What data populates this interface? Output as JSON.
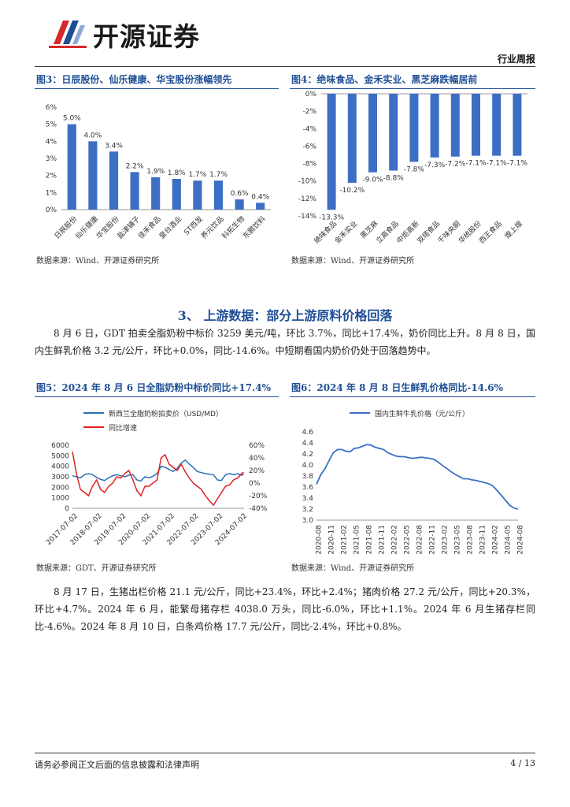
{
  "header": {
    "logo_text": "开源证券",
    "section": "行业周报"
  },
  "colors": {
    "accent": "#1f4e96",
    "bar": "#3c6fc4",
    "line_red": "#e02020",
    "line_blue": "#2a6fb8",
    "logo_red": "#d6282d"
  },
  "fig3": {
    "title": "图3：日辰股份、仙乐健康、华宝股份涨幅领先",
    "source": "数据来源：Wind、开源证券研究所",
    "chart_data": {
      "type": "bar",
      "categories": [
        "日辰股份",
        "仙乐健康",
        "华宝股份",
        "盐津铺子",
        "佳禾食品",
        "皇台酒业",
        "ST西发",
        "养元饮品",
        "科拓生物",
        "东鹏饮料"
      ],
      "values": [
        5.0,
        4.0,
        3.4,
        2.2,
        1.9,
        1.8,
        1.7,
        1.7,
        0.6,
        0.4
      ],
      "value_labels": [
        "5.0%",
        "4.0%",
        "3.4%",
        "2.2%",
        "1.9%",
        "1.8%",
        "1.7%",
        "1.7%",
        "0.6%",
        "0.4%"
      ],
      "ylim": [
        0,
        6
      ],
      "ytick_labels": [
        "0%",
        "1%",
        "2%",
        "3%",
        "4%",
        "5%",
        "6%"
      ]
    }
  },
  "fig4": {
    "title": "图4：绝味食品、金禾实业、黑芝麻跌幅居前",
    "source": "数据来源：Wind、开源证券研究所",
    "chart_data": {
      "type": "bar",
      "categories": [
        "绝味食品",
        "金禾实业",
        "黑芝麻",
        "立高食品",
        "中炬高新",
        "双塔食品",
        "千味央厨",
        "华统股份",
        "西王食品",
        "煌上煌"
      ],
      "values": [
        -13.3,
        -10.2,
        -9.0,
        -8.8,
        -7.8,
        -7.3,
        -7.2,
        -7.1,
        -7.1,
        -7.1
      ],
      "value_labels": [
        "-13.3%",
        "-10.2%",
        "-9.0%",
        "-8.8%",
        "-7.8%",
        "-7.3%",
        "-7.2%",
        "-7.1%",
        "-7.1%",
        "-7.1%"
      ],
      "ylim": [
        -14,
        0
      ],
      "ytick_labels": [
        "0%",
        "-2%",
        "-4%",
        "-6%",
        "-8%",
        "-10%",
        "-12%",
        "-14%"
      ]
    }
  },
  "section3": {
    "title": "3、 上游数据：部分上游原料价格回落"
  },
  "para1": "8 月 6 日，GDT 拍卖全脂奶粉中标价 3259 美元/吨，环比 3.7%，同比+17.4%，奶价同比上升。8 月 8 日，国内生鲜乳价格 3.2 元/公斤，环比+0.0%，同比-14.6%。中短期看国内奶价仍处于回落趋势中。",
  "fig5": {
    "title": "图5：2024 年 8 月 6 日全脂奶粉中标价同比+17.4%",
    "source": "数据来源：GDT、开源证券研究所",
    "chart_data": {
      "type": "line",
      "series": [
        {
          "name": "新西兰全脂奶粉拍卖价（USD/MD）",
          "axis": "left",
          "x": [
            "2017-07",
            "2017-09",
            "2017-11",
            "2018-01",
            "2018-03",
            "2018-05",
            "2018-07",
            "2018-09",
            "2018-11",
            "2019-01",
            "2019-03",
            "2019-05",
            "2019-07",
            "2019-09",
            "2019-11",
            "2020-01",
            "2020-03",
            "2020-05",
            "2020-07",
            "2020-09",
            "2020-11",
            "2021-01",
            "2021-03",
            "2021-05",
            "2021-07",
            "2021-09",
            "2021-11",
            "2022-01",
            "2022-03",
            "2022-05",
            "2022-07",
            "2022-09",
            "2022-11",
            "2023-01",
            "2023-03",
            "2023-05",
            "2023-07",
            "2023-09",
            "2023-11",
            "2024-01",
            "2024-03",
            "2024-05",
            "2024-07",
            "2024-08"
          ],
          "values": [
            3100,
            3000,
            2900,
            3200,
            3300,
            3200,
            2950,
            2750,
            2650,
            2900,
            3100,
            3200,
            3100,
            3000,
            3150,
            3200,
            2700,
            2600,
            3000,
            2900,
            3050,
            3300,
            4000,
            3900,
            3700,
            3500,
            3800,
            4300,
            4600,
            4200,
            3900,
            3500,
            3400,
            3300,
            3250,
            3200,
            2700,
            2650,
            3200,
            3300,
            3200,
            3300,
            3150,
            3259
          ]
        },
        {
          "name": "同比增速",
          "axis": "right",
          "x": [
            "2017-07",
            "2017-09",
            "2017-11",
            "2018-01",
            "2018-03",
            "2018-05",
            "2018-07",
            "2018-09",
            "2018-11",
            "2019-01",
            "2019-03",
            "2019-05",
            "2019-07",
            "2019-09",
            "2019-11",
            "2020-01",
            "2020-03",
            "2020-05",
            "2020-07",
            "2020-09",
            "2020-11",
            "2021-01",
            "2021-03",
            "2021-05",
            "2021-07",
            "2021-09",
            "2021-11",
            "2022-01",
            "2022-03",
            "2022-05",
            "2022-07",
            "2022-09",
            "2022-11",
            "2023-01",
            "2023-03",
            "2023-05",
            "2023-07",
            "2023-09",
            "2023-11",
            "2024-01",
            "2024-03",
            "2024-05",
            "2024-07",
            "2024-08"
          ],
          "values": [
            50,
            15,
            -10,
            -15,
            -20,
            -5,
            5,
            -10,
            -15,
            -5,
            0,
            10,
            8,
            15,
            20,
            5,
            -12,
            -20,
            -5,
            -5,
            0,
            5,
            40,
            45,
            30,
            25,
            20,
            30,
            18,
            8,
            0,
            -5,
            -10,
            -20,
            -28,
            -35,
            -25,
            -15,
            -5,
            -3,
            5,
            8,
            15,
            17.4
          ]
        }
      ],
      "ylim_left": [
        0,
        6000
      ],
      "ylim_right": [
        -40,
        60
      ],
      "ytick_left": [
        "0",
        "1000",
        "2000",
        "3000",
        "4000",
        "5000",
        "6000"
      ],
      "ytick_right": [
        "-40%",
        "-20%",
        "0%",
        "20%",
        "40%",
        "60%"
      ],
      "xtick_labels": [
        "2017-07-02",
        "2018-07-02",
        "2019-07-02",
        "2020-07-02",
        "2021-07-02",
        "2022-07-02",
        "2023-07-02",
        "2024-07-02"
      ]
    }
  },
  "fig6": {
    "title": "图6：2024 年 8 月 8 日生鲜乳价格同比-14.6%",
    "source": "数据来源：Wind、开源证券研究所",
    "chart_data": {
      "type": "line",
      "series": [
        {
          "name": "国内生鲜牛乳价格（元/公斤）",
          "x": [
            "2020-08",
            "2020-09",
            "2020-10",
            "2020-11",
            "2020-12",
            "2021-01",
            "2021-02",
            "2021-03",
            "2021-04",
            "2021-05",
            "2021-06",
            "2021-07",
            "2021-08",
            "2021-09",
            "2021-10",
            "2021-11",
            "2021-12",
            "2022-01",
            "2022-02",
            "2022-03",
            "2022-04",
            "2022-05",
            "2022-06",
            "2022-07",
            "2022-08",
            "2022-09",
            "2022-10",
            "2022-11",
            "2022-12",
            "2023-01",
            "2023-02",
            "2023-03",
            "2023-04",
            "2023-05",
            "2023-06",
            "2023-07",
            "2023-08",
            "2023-09",
            "2023-10",
            "2023-11",
            "2023-12",
            "2024-01",
            "2024-02",
            "2024-03",
            "2024-04",
            "2024-05",
            "2024-06",
            "2024-07",
            "2024-08"
          ],
          "values": [
            3.65,
            3.82,
            3.93,
            4.08,
            4.22,
            4.28,
            4.28,
            4.25,
            4.24,
            4.3,
            4.31,
            4.34,
            4.37,
            4.36,
            4.32,
            4.3,
            4.28,
            4.22,
            4.19,
            4.16,
            4.15,
            4.15,
            4.13,
            4.12,
            4.13,
            4.14,
            4.13,
            4.12,
            4.1,
            4.05,
            3.99,
            3.94,
            3.88,
            3.83,
            3.79,
            3.75,
            3.75,
            3.73,
            3.72,
            3.7,
            3.68,
            3.66,
            3.62,
            3.54,
            3.45,
            3.36,
            3.27,
            3.22,
            3.2
          ]
        }
      ],
      "ylim": [
        3.0,
        4.6
      ],
      "ytick_labels": [
        "3.0",
        "3.2",
        "3.4",
        "3.6",
        "3.8",
        "4.0",
        "4.2",
        "4.4",
        "4.6"
      ],
      "xtick_labels": [
        "2020-08",
        "2020-11",
        "2021-02",
        "2021-05",
        "2021-08",
        "2021-11",
        "2022-02",
        "2022-05",
        "2022-08",
        "2022-11",
        "2023-02",
        "2023-05",
        "2023-08",
        "2023-11",
        "2024-02",
        "2024-05",
        "2024-08"
      ]
    }
  },
  "para2": "8 月 17 日，生猪出栏价格 21.1 元/公斤，同比+23.4%，环比+2.4%；猪肉价格 27.2 元/公斤，同比+20.3%，环比+4.7%。2024 年 6 月，能繁母猪存栏 4038.0 万头，同比-6.0%，环比+1.1%。2024 年 6 月生猪存栏同比-4.6%。2024 年 8 月 10 日，白条鸡价格 17.7 元/公斤，同比-2.4%，环比+0.8%。",
  "footer": {
    "disclaimer": "请务必参阅正文后面的信息披露和法律声明",
    "page": "4 / 13"
  }
}
